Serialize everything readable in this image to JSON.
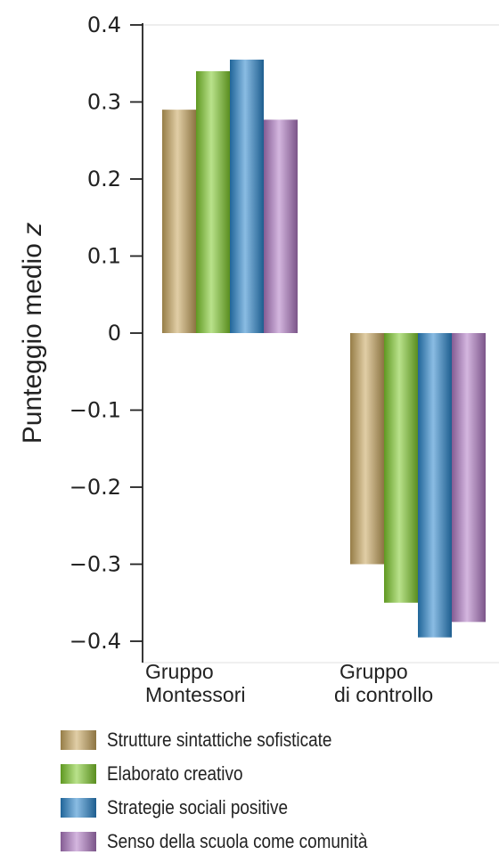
{
  "chart_data": {
    "type": "bar",
    "ylabel": "Punteggio medio z",
    "ylabel_main": "Punteggio medio ",
    "ylabel_var": "z",
    "ylim": [
      -0.4,
      0.4
    ],
    "yticks": [
      0.4,
      0.3,
      0.2,
      0.1,
      0,
      -0.1,
      -0.2,
      -0.3,
      -0.4
    ],
    "ytick_labels": [
      "0.4",
      "0.3",
      "0.2",
      "0.1",
      "0",
      "−0.1",
      "−0.2",
      "−0.3",
      "−0.4"
    ],
    "categories": [
      {
        "line1": "Gruppo",
        "line2": "Montessori"
      },
      {
        "line1": "Gruppo",
        "line2": "di controllo"
      }
    ],
    "series": [
      {
        "name": "Strutture sintattiche sofisticate",
        "values": [
          0.29,
          -0.3
        ],
        "color": "#c8a65e"
      },
      {
        "name": "Elaborato creativo",
        "values": [
          0.34,
          -0.35
        ],
        "color": "#7fca2c"
      },
      {
        "name": "Strategie sociali positive",
        "values": [
          0.355,
          -0.395
        ],
        "color": "#2b86cc"
      },
      {
        "name": "Senso della scuola come comunità",
        "values": [
          0.277,
          -0.375
        ],
        "color": "#b07ac4"
      }
    ],
    "legend_position": "bottom",
    "grid": false
  }
}
